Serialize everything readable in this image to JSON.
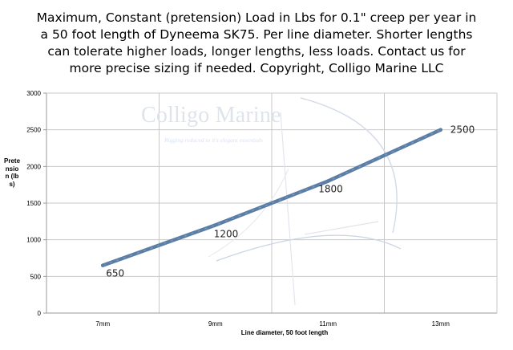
{
  "chart_data": {
    "type": "line",
    "title": "Maximum, Constant (pretension) Load in Lbs for 0.1\" creep per year in a 50 foot length of Dyneema SK75.  Per line diameter.  Shorter lengths can tolerate higher loads, longer lengths, less loads.  Contact us for more precise sizing if needed.  Copyright, Colligo Marine LLC",
    "title_lines": [
      "Maximum, Constant (pretension) Load in Lbs for 0.1\" creep per year in",
      "a 50 foot length of Dyneema SK75.  Per line diameter.  Shorter lengths",
      "can tolerate higher loads, longer lengths, less loads.  Contact us for",
      "more precise sizing if needed.  Copyright, Colligo Marine LLC"
    ],
    "categories": [
      "7mm",
      "9mm",
      "11mm",
      "13mm"
    ],
    "values": [
      650,
      1200,
      1800,
      2500
    ],
    "data_labels": [
      "650",
      "1200",
      "1800",
      "2500"
    ],
    "xlabel": "Line diameter, 50 foot length",
    "ylabel": "Pretension (lbs)",
    "ylim": [
      0,
      3000
    ],
    "yticks": [
      0,
      500,
      1000,
      1500,
      2000,
      2500,
      3000
    ],
    "grid": true,
    "line_color": "#5b7ea6"
  },
  "watermark": {
    "name": "Colligo Marine",
    "tagline": "Rigging reduced to it's elegant essentials"
  }
}
